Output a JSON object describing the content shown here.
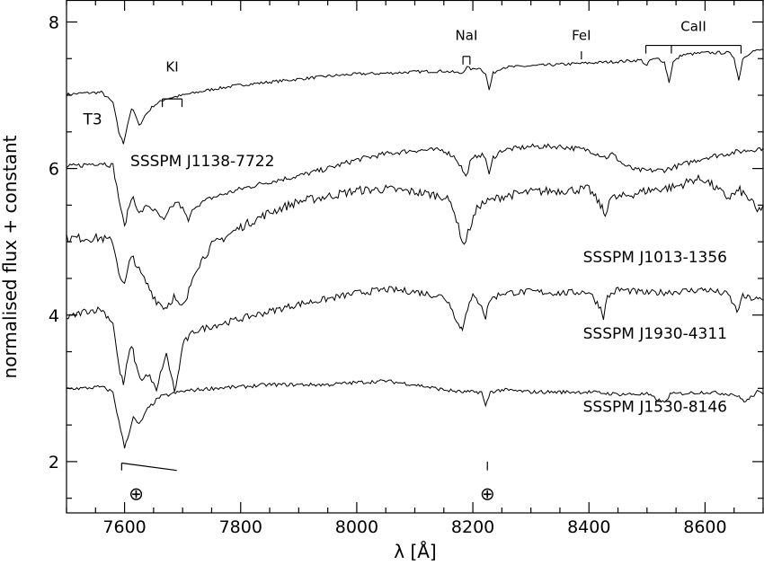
{
  "chart_data": {
    "type": "line",
    "xlabel": "λ [Å]",
    "ylabel": "normalised flux + constant",
    "xlim": [
      7500,
      8700
    ],
    "ylim": [
      1.3,
      8.3
    ],
    "x_ticks": [
      7600,
      7800,
      8000,
      8200,
      8400,
      8600
    ],
    "y_ticks": [
      2,
      4,
      6,
      8
    ],
    "series": [
      {
        "name": "T3",
        "points": [
          [
            7500,
            7.01
          ],
          [
            7530,
            7.03
          ],
          [
            7560,
            7.04
          ],
          [
            7580,
            6.9
          ],
          [
            7590,
            6.5
          ],
          [
            7598,
            6.34
          ],
          [
            7605,
            6.6
          ],
          [
            7612,
            6.82
          ],
          [
            7618,
            6.74
          ],
          [
            7625,
            6.58
          ],
          [
            7635,
            6.72
          ],
          [
            7650,
            6.86
          ],
          [
            7670,
            6.95
          ],
          [
            7700,
            7.0
          ],
          [
            7750,
            7.08
          ],
          [
            7800,
            7.14
          ],
          [
            7850,
            7.18
          ],
          [
            7900,
            7.22
          ],
          [
            7950,
            7.26
          ],
          [
            8000,
            7.29
          ],
          [
            8050,
            7.3
          ],
          [
            8100,
            7.32
          ],
          [
            8150,
            7.33
          ],
          [
            8180,
            7.3
          ],
          [
            8190,
            7.38
          ],
          [
            8200,
            7.35
          ],
          [
            8210,
            7.38
          ],
          [
            8222,
            7.3
          ],
          [
            8228,
            7.07
          ],
          [
            8235,
            7.3
          ],
          [
            8250,
            7.38
          ],
          [
            8300,
            7.4
          ],
          [
            8350,
            7.42
          ],
          [
            8400,
            7.44
          ],
          [
            8450,
            7.46
          ],
          [
            8490,
            7.48
          ],
          [
            8500,
            7.4
          ],
          [
            8505,
            7.48
          ],
          [
            8520,
            7.5
          ],
          [
            8530,
            7.45
          ],
          [
            8538,
            7.18
          ],
          [
            8545,
            7.45
          ],
          [
            8560,
            7.55
          ],
          [
            8600,
            7.58
          ],
          [
            8640,
            7.58
          ],
          [
            8650,
            7.52
          ],
          [
            8658,
            7.2
          ],
          [
            8665,
            7.5
          ],
          [
            8680,
            7.6
          ],
          [
            8700,
            7.62
          ]
        ]
      },
      {
        "name": "SSSPM J1138-7722",
        "points": [
          [
            7500,
            6.02
          ],
          [
            7530,
            6.05
          ],
          [
            7560,
            6.08
          ],
          [
            7580,
            6.04
          ],
          [
            7590,
            5.6
          ],
          [
            7600,
            5.2
          ],
          [
            7608,
            5.5
          ],
          [
            7615,
            5.62
          ],
          [
            7625,
            5.38
          ],
          [
            7640,
            5.5
          ],
          [
            7655,
            5.4
          ],
          [
            7668,
            5.28
          ],
          [
            7678,
            5.44
          ],
          [
            7690,
            5.55
          ],
          [
            7700,
            5.45
          ],
          [
            7710,
            5.28
          ],
          [
            7720,
            5.48
          ],
          [
            7750,
            5.6
          ],
          [
            7800,
            5.72
          ],
          [
            7850,
            5.82
          ],
          [
            7900,
            5.9
          ],
          [
            7950,
            6.0
          ],
          [
            8000,
            6.12
          ],
          [
            8050,
            6.2
          ],
          [
            8100,
            6.25
          ],
          [
            8150,
            6.25
          ],
          [
            8170,
            6.15
          ],
          [
            8180,
            6.02
          ],
          [
            8188,
            5.88
          ],
          [
            8195,
            6.08
          ],
          [
            8210,
            6.2
          ],
          [
            8222,
            6.15
          ],
          [
            8228,
            5.9
          ],
          [
            8235,
            6.15
          ],
          [
            8250,
            6.25
          ],
          [
            8300,
            6.3
          ],
          [
            8350,
            6.3
          ],
          [
            8400,
            6.25
          ],
          [
            8430,
            6.15
          ],
          [
            8440,
            6.2
          ],
          [
            8460,
            6.05
          ],
          [
            8480,
            5.98
          ],
          [
            8500,
            5.97
          ],
          [
            8530,
            5.98
          ],
          [
            8560,
            6.05
          ],
          [
            8600,
            6.15
          ],
          [
            8650,
            6.22
          ],
          [
            8700,
            6.28
          ]
        ]
      },
      {
        "name": "SSSPM J1013-1356",
        "points": [
          [
            7500,
            5.05
          ],
          [
            7530,
            5.05
          ],
          [
            7560,
            5.05
          ],
          [
            7580,
            5.0
          ],
          [
            7590,
            4.6
          ],
          [
            7600,
            4.4
          ],
          [
            7608,
            4.7
          ],
          [
            7615,
            4.8
          ],
          [
            7625,
            4.6
          ],
          [
            7640,
            4.4
          ],
          [
            7655,
            4.2
          ],
          [
            7670,
            4.1
          ],
          [
            7685,
            4.25
          ],
          [
            7695,
            4.1
          ],
          [
            7705,
            4.15
          ],
          [
            7720,
            4.6
          ],
          [
            7750,
            4.95
          ],
          [
            7800,
            5.2
          ],
          [
            7850,
            5.4
          ],
          [
            7900,
            5.55
          ],
          [
            7950,
            5.62
          ],
          [
            8000,
            5.7
          ],
          [
            8050,
            5.72
          ],
          [
            8100,
            5.68
          ],
          [
            8150,
            5.62
          ],
          [
            8165,
            5.5
          ],
          [
            8175,
            5.2
          ],
          [
            8185,
            4.95
          ],
          [
            8195,
            5.2
          ],
          [
            8210,
            5.5
          ],
          [
            8250,
            5.62
          ],
          [
            8300,
            5.68
          ],
          [
            8350,
            5.7
          ],
          [
            8400,
            5.72
          ],
          [
            8420,
            5.5
          ],
          [
            8428,
            5.35
          ],
          [
            8435,
            5.6
          ],
          [
            8450,
            5.6
          ],
          [
            8500,
            5.7
          ],
          [
            8550,
            5.75
          ],
          [
            8580,
            5.85
          ],
          [
            8600,
            5.85
          ],
          [
            8620,
            5.72
          ],
          [
            8640,
            5.6
          ],
          [
            8660,
            5.7
          ],
          [
            8680,
            5.55
          ],
          [
            8690,
            5.4
          ],
          [
            8700,
            5.5
          ]
        ]
      },
      {
        "name": "SSSPM J1930-4311",
        "points": [
          [
            7500,
            3.95
          ],
          [
            7530,
            4.05
          ],
          [
            7560,
            4.08
          ],
          [
            7580,
            3.9
          ],
          [
            7590,
            3.3
          ],
          [
            7598,
            3.05
          ],
          [
            7606,
            3.4
          ],
          [
            7612,
            3.6
          ],
          [
            7620,
            3.3
          ],
          [
            7630,
            3.1
          ],
          [
            7640,
            3.2
          ],
          [
            7650,
            3.05
          ],
          [
            7655,
            2.95
          ],
          [
            7665,
            3.3
          ],
          [
            7672,
            3.45
          ],
          [
            7680,
            3.2
          ],
          [
            7686,
            2.95
          ],
          [
            7694,
            3.25
          ],
          [
            7700,
            3.6
          ],
          [
            7720,
            3.78
          ],
          [
            7750,
            3.85
          ],
          [
            7800,
            3.95
          ],
          [
            7850,
            4.05
          ],
          [
            7900,
            4.15
          ],
          [
            7950,
            4.22
          ],
          [
            8000,
            4.3
          ],
          [
            8050,
            4.35
          ],
          [
            8100,
            4.32
          ],
          [
            8150,
            4.25
          ],
          [
            8165,
            4.1
          ],
          [
            8172,
            3.9
          ],
          [
            8178,
            3.85
          ],
          [
            8182,
            3.8
          ],
          [
            8188,
            4.05
          ],
          [
            8200,
            4.25
          ],
          [
            8215,
            4.15
          ],
          [
            8222,
            3.95
          ],
          [
            8228,
            4.2
          ],
          [
            8250,
            4.3
          ],
          [
            8300,
            4.32
          ],
          [
            8350,
            4.3
          ],
          [
            8400,
            4.32
          ],
          [
            8420,
            4.1
          ],
          [
            8425,
            3.98
          ],
          [
            8432,
            4.25
          ],
          [
            8450,
            4.35
          ],
          [
            8500,
            4.3
          ],
          [
            8550,
            4.32
          ],
          [
            8600,
            4.35
          ],
          [
            8640,
            4.28
          ],
          [
            8655,
            4.05
          ],
          [
            8665,
            4.25
          ],
          [
            8700,
            4.2
          ]
        ]
      },
      {
        "name": "SSSPM J1530-8146",
        "points": [
          [
            7500,
            3.0
          ],
          [
            7530,
            3.0
          ],
          [
            7560,
            3.02
          ],
          [
            7580,
            2.95
          ],
          [
            7590,
            2.55
          ],
          [
            7600,
            2.2
          ],
          [
            7608,
            2.4
          ],
          [
            7615,
            2.6
          ],
          [
            7625,
            2.5
          ],
          [
            7640,
            2.72
          ],
          [
            7660,
            2.88
          ],
          [
            7700,
            2.96
          ],
          [
            7750,
            3.0
          ],
          [
            7800,
            3.02
          ],
          [
            7850,
            3.05
          ],
          [
            7900,
            3.05
          ],
          [
            7950,
            3.05
          ],
          [
            8000,
            3.08
          ],
          [
            8050,
            3.1
          ],
          [
            8100,
            3.05
          ],
          [
            8150,
            2.98
          ],
          [
            8180,
            2.95
          ],
          [
            8200,
            2.95
          ],
          [
            8215,
            2.95
          ],
          [
            8222,
            2.75
          ],
          [
            8230,
            2.95
          ],
          [
            8250,
            2.98
          ],
          [
            8300,
            2.95
          ],
          [
            8350,
            2.95
          ],
          [
            8400,
            2.95
          ],
          [
            8450,
            2.92
          ],
          [
            8500,
            2.92
          ],
          [
            8530,
            2.8
          ],
          [
            8540,
            2.92
          ],
          [
            8600,
            2.95
          ],
          [
            8650,
            2.92
          ],
          [
            8670,
            2.82
          ],
          [
            8690,
            2.95
          ],
          [
            8700,
            2.92
          ]
        ]
      }
    ],
    "annotations": {
      "lines": [
        {
          "label": "KI",
          "x": [
            7665,
            7699
          ]
        },
        {
          "label": "NaI",
          "x": [
            8183,
            8195
          ]
        },
        {
          "label": "FeI",
          "x": [
            8387
          ]
        },
        {
          "label": "CaII",
          "x": [
            8498,
            8542,
            8662
          ]
        }
      ],
      "telluric_symbol": "⊕",
      "telluric_x": [
        7620,
        8225
      ]
    }
  }
}
